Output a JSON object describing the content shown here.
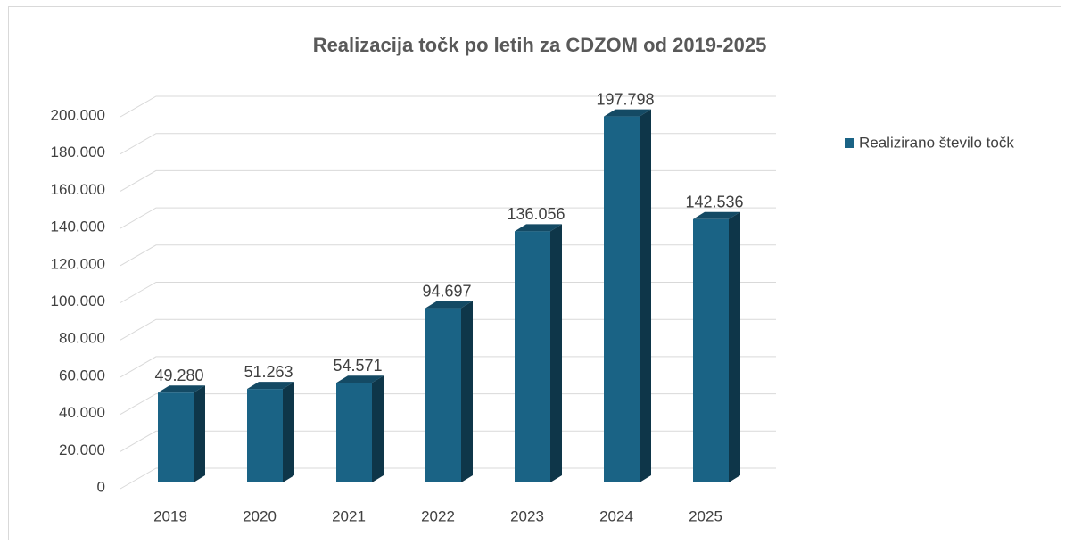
{
  "chart_data": {
    "type": "bar3d",
    "title": "Realizacija točk po letih za CDZOM od 2019-2025",
    "categories": [
      "2019",
      "2020",
      "2021",
      "2022",
      "2023",
      "2024",
      "2025"
    ],
    "series": [
      {
        "name": "Realizirano število točk",
        "color": "#1a6385",
        "values": [
          49280,
          51263,
          54571,
          94697,
          136056,
          197798,
          142536
        ],
        "value_labels": [
          "49.280",
          "51.263",
          "54.571",
          "94.697",
          "136.056",
          "197.798",
          "142.536"
        ]
      }
    ],
    "ylim": [
      0,
      200000
    ],
    "yticks": [
      0,
      {
        "value": 20000,
        "label": "20.000"
      },
      {
        "value": 40000,
        "label": "40.000"
      },
      {
        "value": 60000,
        "label": "60.000"
      },
      {
        "value": 80000,
        "label": "80.000"
      },
      {
        "value": 100000,
        "label": "100.000"
      },
      {
        "value": 120000,
        "label": "120.000"
      },
      {
        "value": 140000,
        "label": "140.000"
      },
      {
        "value": 160000,
        "label": "160.000"
      },
      {
        "value": 180000,
        "label": "180.000"
      },
      {
        "value": 200000,
        "label": "200.000"
      }
    ],
    "grid": true,
    "legend": "right"
  }
}
